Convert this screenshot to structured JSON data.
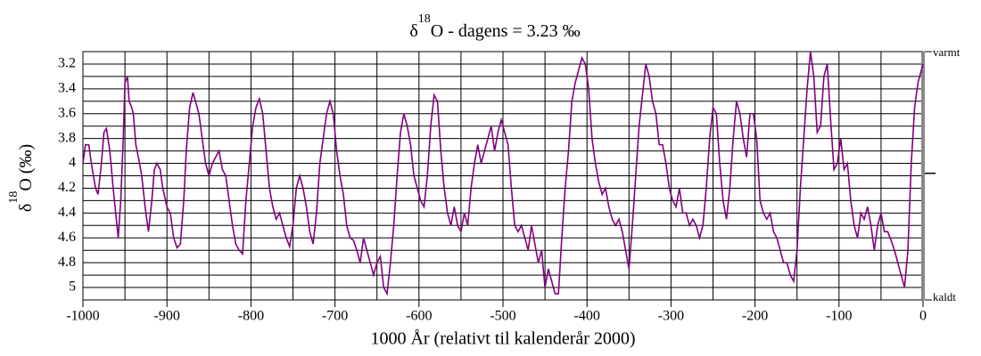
{
  "chart_data": {
    "type": "line",
    "title": {
      "symbol": "δ",
      "superscript": "18",
      "text": "O - dagens = 3.23 ‰"
    },
    "y_label": {
      "symbol": "δ",
      "superscript": "18",
      "text": "O (‰)"
    },
    "x_label": "1000 År (relativt til kalenderår 2000)",
    "annotations": {
      "top": "varmt",
      "bottom": "kaldt"
    },
    "reference_tick": 4.08,
    "xlim": [
      -1000,
      0
    ],
    "xticks": [
      -1000,
      -900,
      -800,
      -700,
      -600,
      -500,
      -400,
      -300,
      -200,
      -100,
      0
    ],
    "xminorticks": [
      -950,
      -850,
      -750,
      -650,
      -550,
      -450,
      -350,
      -250,
      -150,
      -50
    ],
    "ylim": [
      5.1,
      3.1
    ],
    "inverted_y": true,
    "yticks": [
      {
        "value": 3.2,
        "label": "3.2"
      },
      3.4,
      3.6,
      3.8,
      4,
      4.2,
      4.4,
      4.6,
      4.8,
      5
    ],
    "yminorticks": [
      3.3,
      3.5,
      3.7,
      3.9,
      4.1,
      4.3,
      4.5,
      4.7,
      4.9
    ],
    "grid": true,
    "x": [
      -1000,
      -997,
      -993,
      -990,
      -985,
      -982,
      -978,
      -975,
      -972,
      -968,
      -964,
      -961,
      -958,
      -955,
      -952,
      -950,
      -947,
      -945,
      -942,
      -940,
      -937,
      -934,
      -930,
      -926,
      -922,
      -918,
      -915,
      -912,
      -908,
      -905,
      -900,
      -896,
      -892,
      -888,
      -884,
      -880,
      -877,
      -873,
      -869,
      -866,
      -862,
      -858,
      -854,
      -850,
      -846,
      -842,
      -838,
      -834,
      -830,
      -826,
      -822,
      -818,
      -814,
      -810,
      -806,
      -802,
      -798,
      -794,
      -790,
      -786,
      -782,
      -778,
      -774,
      -770,
      -766,
      -762,
      -758,
      -754,
      -750,
      -746,
      -742,
      -738,
      -734,
      -730,
      -726,
      -722,
      -718,
      -714,
      -710,
      -706,
      -702,
      -698,
      -694,
      -690,
      -686,
      -682,
      -678,
      -674,
      -670,
      -666,
      -662,
      -658,
      -654,
      -650,
      -646,
      -642,
      -638,
      -634,
      -630,
      -626,
      -622,
      -618,
      -614,
      -610,
      -606,
      -602,
      -598,
      -594,
      -590,
      -586,
      -582,
      -578,
      -574,
      -570,
      -566,
      -562,
      -558,
      -554,
      -550,
      -546,
      -542,
      -538,
      -534,
      -530,
      -526,
      -522,
      -518,
      -514,
      -510,
      -506,
      -502,
      -498,
      -494,
      -490,
      -486,
      -482,
      -478,
      -474,
      -470,
      -466,
      -462,
      -458,
      -454,
      -450,
      -446,
      -442,
      -438,
      -434,
      -430,
      -426,
      -422,
      -418,
      -414,
      -410,
      -406,
      -402,
      -398,
      -394,
      -390,
      -386,
      -382,
      -378,
      -374,
      -370,
      -366,
      -362,
      -358,
      -354,
      -350,
      -346,
      -342,
      -338,
      -334,
      -330,
      -326,
      -322,
      -318,
      -314,
      -310,
      -306,
      -302,
      -298,
      -294,
      -290,
      -286,
      -282,
      -278,
      -274,
      -270,
      -266,
      -262,
      -258,
      -254,
      -250,
      -246,
      -242,
      -238,
      -234,
      -230,
      -226,
      -222,
      -218,
      -214,
      -210,
      -206,
      -202,
      -198,
      -194,
      -190,
      -186,
      -182,
      -178,
      -174,
      -170,
      -166,
      -162,
      -158,
      -154,
      -150,
      -146,
      -142,
      -138,
      -134,
      -130,
      -126,
      -122,
      -118,
      -114,
      -110,
      -106,
      -102,
      -98,
      -94,
      -90,
      -86,
      -82,
      -78,
      -74,
      -70,
      -66,
      -62,
      -58,
      -54,
      -50,
      -46,
      -42,
      -38,
      -34,
      -30,
      -26,
      -22,
      -18,
      -14,
      -10,
      -6,
      -2,
      0
    ],
    "series": [
      {
        "name": "δ18O",
        "color": "#800080",
        "values": [
          4.0,
          3.85,
          3.85,
          4.0,
          4.2,
          4.25,
          4.0,
          3.75,
          3.72,
          3.9,
          4.2,
          4.4,
          4.6,
          4.3,
          3.8,
          3.35,
          3.3,
          3.5,
          3.55,
          3.6,
          3.85,
          3.95,
          4.1,
          4.35,
          4.55,
          4.3,
          4.05,
          4.0,
          4.05,
          4.2,
          4.35,
          4.4,
          4.6,
          4.68,
          4.65,
          4.3,
          3.9,
          3.55,
          3.43,
          3.5,
          3.6,
          3.8,
          4.0,
          4.1,
          4.0,
          3.95,
          3.9,
          4.05,
          4.1,
          4.3,
          4.5,
          4.65,
          4.7,
          4.73,
          4.3,
          4.0,
          3.7,
          3.55,
          3.48,
          3.6,
          3.9,
          4.2,
          4.35,
          4.45,
          4.4,
          4.5,
          4.6,
          4.67,
          4.5,
          4.2,
          4.1,
          4.2,
          4.35,
          4.55,
          4.65,
          4.4,
          4.0,
          3.8,
          3.6,
          3.5,
          3.6,
          3.9,
          4.1,
          4.25,
          4.5,
          4.6,
          4.62,
          4.7,
          4.8,
          4.6,
          4.7,
          4.8,
          4.9,
          4.8,
          4.75,
          5.0,
          5.05,
          4.8,
          4.5,
          4.1,
          3.75,
          3.6,
          3.7,
          3.85,
          4.1,
          4.2,
          4.3,
          4.35,
          4.1,
          3.7,
          3.45,
          3.5,
          3.9,
          4.2,
          4.4,
          4.5,
          4.35,
          4.5,
          4.55,
          4.4,
          4.5,
          4.2,
          4.0,
          3.85,
          4.0,
          3.9,
          3.8,
          3.7,
          3.9,
          3.75,
          3.65,
          3.75,
          3.85,
          4.2,
          4.5,
          4.55,
          4.5,
          4.6,
          4.7,
          4.5,
          4.65,
          4.8,
          4.7,
          5.0,
          4.85,
          4.95,
          5.05,
          5.05,
          4.6,
          4.2,
          3.9,
          3.5,
          3.35,
          3.25,
          3.15,
          3.2,
          3.4,
          3.8,
          4.0,
          4.15,
          4.25,
          4.2,
          4.35,
          4.45,
          4.5,
          4.45,
          4.55,
          4.7,
          4.85,
          4.5,
          4.1,
          3.7,
          3.45,
          3.2,
          3.3,
          3.5,
          3.6,
          3.85,
          3.85,
          4.0,
          4.2,
          4.3,
          4.35,
          4.2,
          4.4,
          4.4,
          4.5,
          4.45,
          4.5,
          4.6,
          4.5,
          4.2,
          3.8,
          3.55,
          3.6,
          4.0,
          4.3,
          4.45,
          4.2,
          3.8,
          3.5,
          3.6,
          3.8,
          3.95,
          3.6,
          3.6,
          3.8,
          4.3,
          4.4,
          4.45,
          4.4,
          4.55,
          4.6,
          4.7,
          4.8,
          4.8,
          4.9,
          4.95,
          4.7,
          4.2,
          3.8,
          3.4,
          3.1,
          3.3,
          3.75,
          3.7,
          3.3,
          3.2,
          3.65,
          4.05,
          4.0,
          3.8,
          4.05,
          4.0,
          4.3,
          4.5,
          4.6,
          4.4,
          4.45,
          4.35,
          4.5,
          4.7,
          4.5,
          4.4,
          4.55,
          4.55,
          4.62,
          4.7,
          4.8,
          4.9,
          5.0,
          4.7,
          4.0,
          3.55,
          3.35,
          3.25,
          3.2
        ]
      }
    ]
  }
}
